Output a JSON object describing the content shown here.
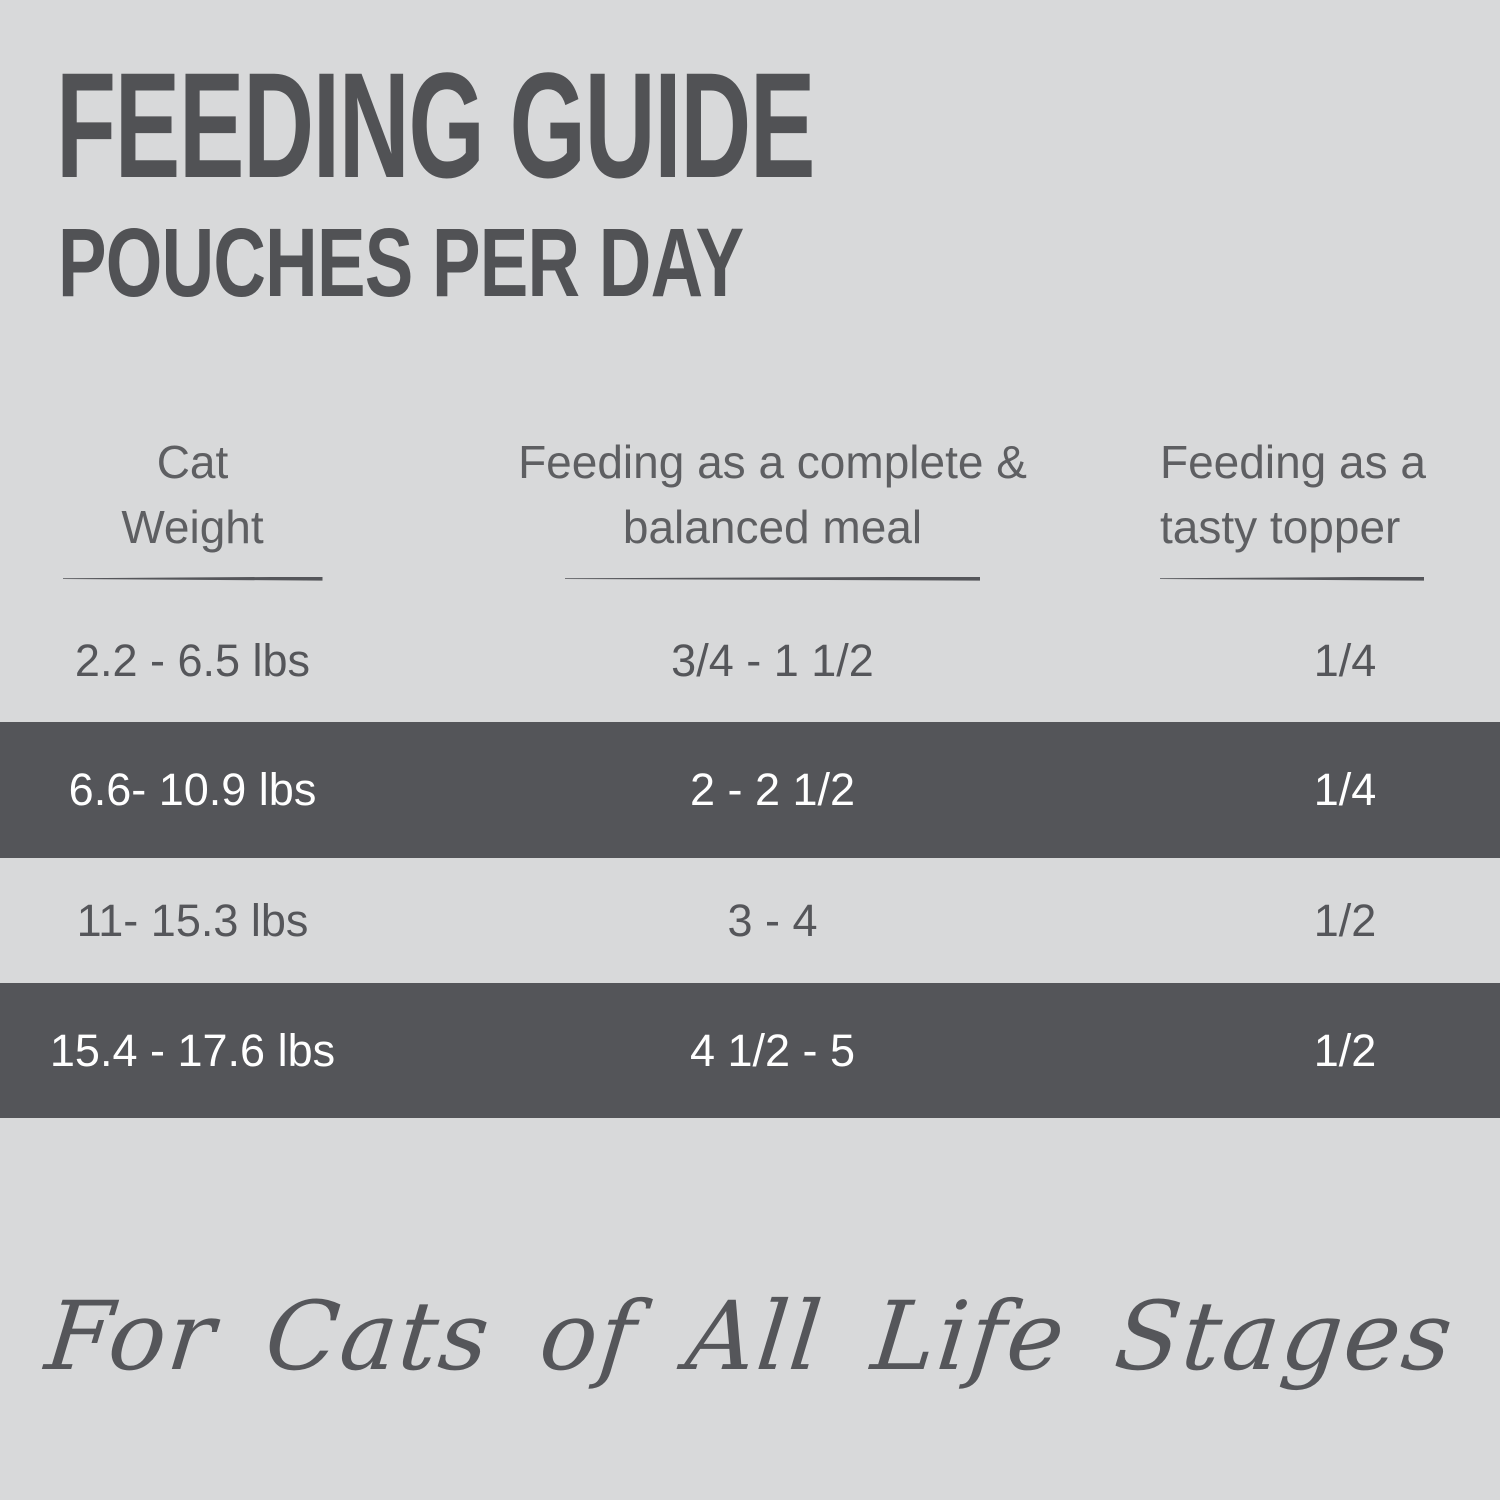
{
  "page": {
    "title": "FEEDING GUIDE",
    "subtitle": "POUCHES PER DAY",
    "footer": "For Cats of All Life Stages"
  },
  "table": {
    "headers": [
      {
        "line1": "Cat",
        "line2": "Weight"
      },
      {
        "line1": "Feeding as a complete &",
        "line2": "balanced meal"
      },
      {
        "line1": "Feeding as a",
        "line2": "tasty topper"
      }
    ],
    "rows": [
      {
        "weight": "2.2 - 6.5 lbs",
        "meal": "3/4 - 1 1/2",
        "topper": "1/4",
        "highlighted": false
      },
      {
        "weight": "6.6- 10.9 lbs",
        "meal": "2 - 2 1/2",
        "topper": "1/4",
        "highlighted": true
      },
      {
        "weight": "11- 15.3 lbs",
        "meal": "3 - 4",
        "topper": "1/2",
        "highlighted": false
      },
      {
        "weight": "15.4 - 17.6 lbs",
        "meal": "4 1/2 - 5",
        "topper": "1/2",
        "highlighted": true
      }
    ]
  },
  "colors": {
    "background": "#d8d9da",
    "highlight_row": "#545559",
    "text_dark": "#55565a",
    "text_light": "#ffffff",
    "title_text": "#515255"
  },
  "chart_data": {
    "type": "table",
    "title": "FEEDING GUIDE",
    "subtitle": "POUCHES PER DAY",
    "columns": [
      "Cat Weight",
      "Feeding as a complete & balanced meal",
      "Feeding as a tasty topper"
    ],
    "rows": [
      [
        "2.2 - 6.5 lbs",
        "3/4 - 1 1/2",
        "1/4"
      ],
      [
        "6.6- 10.9 lbs",
        "2 - 2 1/2",
        "1/4"
      ],
      [
        "11- 15.3 lbs",
        "3 - 4",
        "1/2"
      ],
      [
        "15.4 - 17.6 lbs",
        "4 1/2 - 5",
        "1/2"
      ]
    ],
    "highlighted_rows": [
      1,
      3
    ],
    "footnote": "For Cats of All Life Stages"
  }
}
